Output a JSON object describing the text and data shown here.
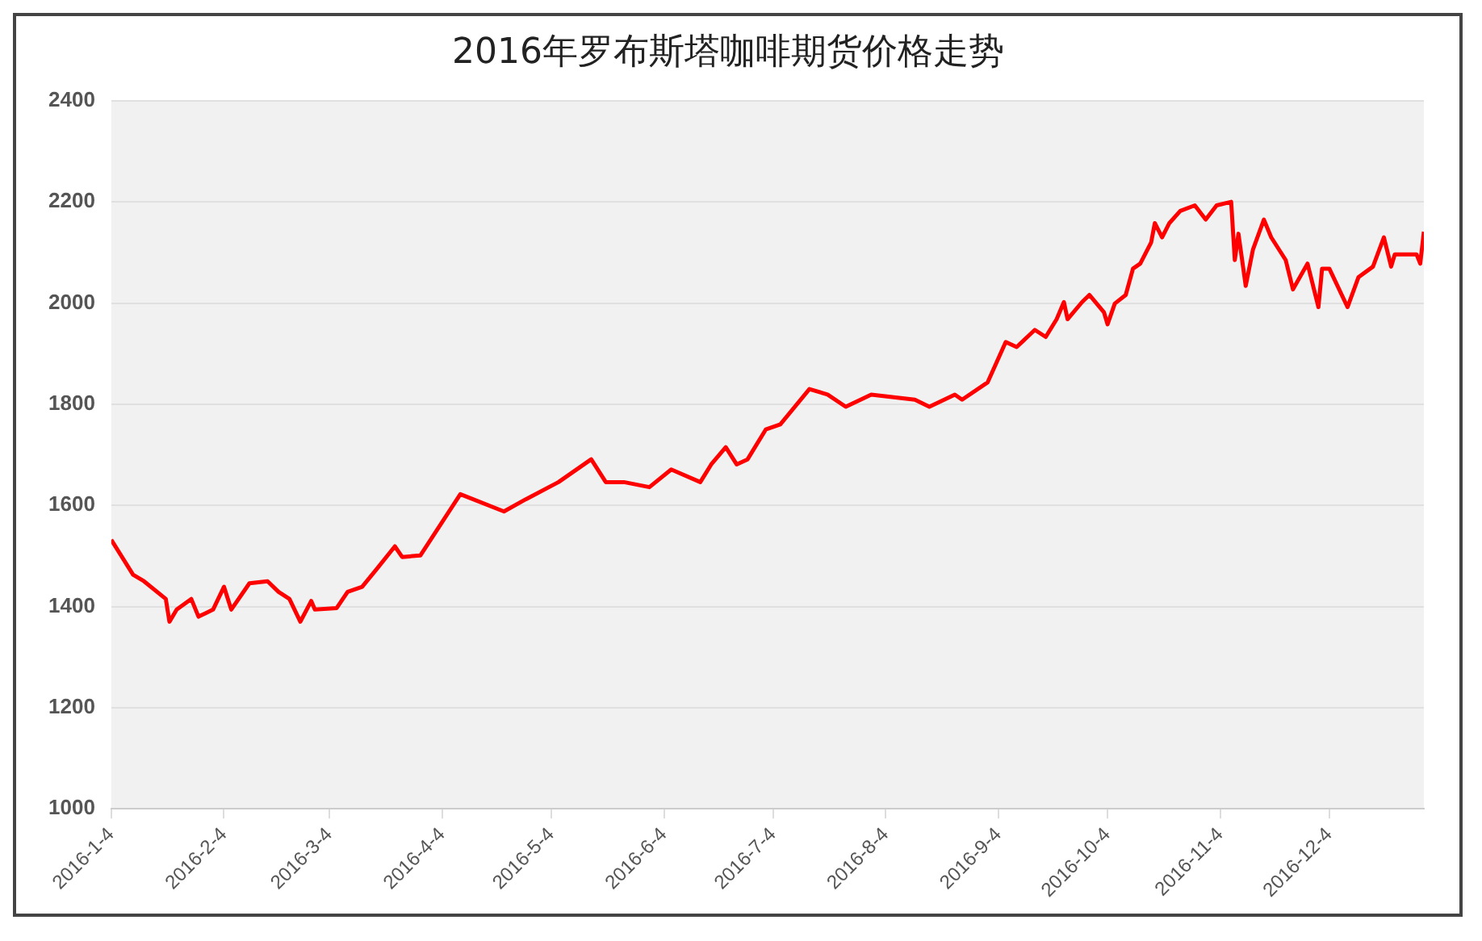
{
  "chart_data": {
    "type": "line",
    "title": "2016年罗布斯塔咖啡期货价格走势",
    "x": [
      "2016-01-04",
      "2016-01-10",
      "2016-01-13",
      "2016-01-19",
      "2016-01-20",
      "2016-01-22",
      "2016-01-26",
      "2016-01-28",
      "2016-02-01",
      "2016-02-04",
      "2016-02-06",
      "2016-02-11",
      "2016-02-16",
      "2016-02-19",
      "2016-02-22",
      "2016-02-25",
      "2016-02-28",
      "2016-02-29",
      "2016-03-06",
      "2016-03-09",
      "2016-03-13",
      "2016-03-17",
      "2016-03-22",
      "2016-03-24",
      "2016-03-29",
      "2016-04-09",
      "2016-04-21",
      "2016-04-27",
      "2016-05-06",
      "2016-05-15",
      "2016-05-19",
      "2016-05-24",
      "2016-05-31",
      "2016-06-06",
      "2016-06-14",
      "2016-06-17",
      "2016-06-21",
      "2016-06-24",
      "2016-06-27",
      "2016-07-02",
      "2016-07-06",
      "2016-07-14",
      "2016-07-19",
      "2016-07-24",
      "2016-07-31",
      "2016-08-12",
      "2016-08-16",
      "2016-08-23",
      "2016-08-25",
      "2016-09-01",
      "2016-09-06",
      "2016-09-09",
      "2016-09-14",
      "2016-09-17",
      "2016-09-20",
      "2016-09-22",
      "2016-09-23",
      "2016-09-27",
      "2016-09-29",
      "2016-10-03",
      "2016-10-04",
      "2016-10-06",
      "2016-10-09",
      "2016-10-11",
      "2016-10-13",
      "2016-10-16",
      "2016-10-17",
      "2016-10-19",
      "2016-10-21",
      "2016-10-24",
      "2016-10-28",
      "2016-10-31",
      "2016-11-03",
      "2016-11-07",
      "2016-11-08",
      "2016-11-09",
      "2016-11-11",
      "2016-11-13",
      "2016-11-16",
      "2016-11-18",
      "2016-11-22",
      "2016-11-24",
      "2016-11-28",
      "2016-12-01",
      "2016-12-02",
      "2016-12-04",
      "2016-12-09",
      "2016-12-12",
      "2016-12-16",
      "2016-12-19",
      "2016-12-21",
      "2016-12-22",
      "2016-12-28",
      "2016-12-29",
      "2016-12-30"
    ],
    "series": [
      {
        "color": "#ff0000",
        "values": [
          1532,
          1463,
          1450,
          1415,
          1370,
          1394,
          1415,
          1380,
          1394,
          1439,
          1394,
          1446,
          1450,
          1429,
          1415,
          1370,
          1411,
          1394,
          1397,
          1429,
          1439,
          1474,
          1519,
          1498,
          1501,
          1622,
          1588,
          1612,
          1646,
          1691,
          1646,
          1646,
          1636,
          1671,
          1646,
          1681,
          1715,
          1681,
          1691,
          1750,
          1760,
          1830,
          1819,
          1795,
          1819,
          1809,
          1795,
          1819,
          1809,
          1843,
          1923,
          1913,
          1947,
          1933,
          1968,
          2002,
          1968,
          2002,
          2016,
          1982,
          1958,
          1999,
          2016,
          2068,
          2078,
          2120,
          2158,
          2130,
          2158,
          2182,
          2193,
          2165,
          2193,
          2200,
          2085,
          2137,
          2034,
          2106,
          2165,
          2130,
          2085,
          2027,
          2078,
          1992,
          2068,
          2068,
          1992,
          2051,
          2072,
          2130,
          2072,
          2096,
          2096,
          2078,
          2141
        ]
      }
    ],
    "xlim": [
      "2016-01-04",
      "2016-12-30"
    ],
    "xticks": [
      {
        "value": "2016-01-04",
        "label": "2016-1-4"
      },
      {
        "value": "2016-02-04",
        "label": "2016-2-4"
      },
      {
        "value": "2016-03-04",
        "label": "2016-3-4"
      },
      {
        "value": "2016-04-04",
        "label": "2016-4-4"
      },
      {
        "value": "2016-05-04",
        "label": "2016-5-4"
      },
      {
        "value": "2016-06-04",
        "label": "2016-6-4"
      },
      {
        "value": "2016-07-04",
        "label": "2016-7-4"
      },
      {
        "value": "2016-08-04",
        "label": "2016-8-4"
      },
      {
        "value": "2016-09-04",
        "label": "2016-9-4"
      },
      {
        "value": "2016-10-04",
        "label": "2016-10-4"
      },
      {
        "value": "2016-11-04",
        "label": "2016-11-4"
      },
      {
        "value": "2016-12-04",
        "label": "2016-12-4"
      }
    ],
    "ylim": [
      1000,
      2400
    ],
    "yticks": [
      1000,
      1200,
      1400,
      1600,
      1800,
      2000,
      2200,
      2400
    ],
    "grid": "y",
    "legend": false,
    "marker": "none",
    "line_style": "solid"
  }
}
